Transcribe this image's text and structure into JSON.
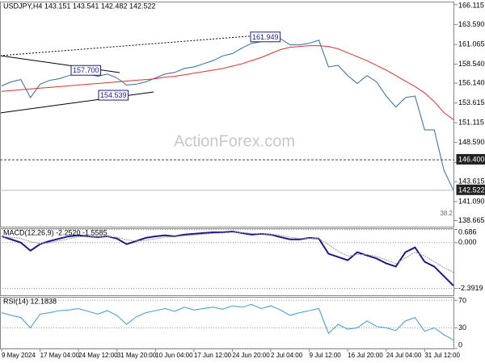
{
  "chart_data": [
    {
      "type": "line",
      "title": "USDJPY,H4 143.151 143.541 142.482 142.522",
      "watermark": "ActionForex.com",
      "categories": [
        "9 May 2024",
        null,
        null,
        null,
        "17 May 04:00",
        null,
        null,
        null,
        "24 May 12:00",
        null,
        null,
        null,
        "31 May 20:00",
        null,
        null,
        null,
        "10 Jun 04:00",
        null,
        null,
        null,
        "17 Jun 12:00",
        null,
        null,
        null,
        "24 Jun 20:00",
        null,
        null,
        null,
        "2 Jul 04:00",
        null,
        null,
        null,
        "9 Jul 12:00",
        null,
        null,
        null,
        "16 Jul 20:00",
        null,
        null,
        null,
        "24 Jul 04:00",
        null,
        null,
        null,
        "31 Jul 12:00",
        null,
        null,
        null
      ],
      "series": [
        {
          "color": "#2b6ca3",
          "values": [
            155.8,
            156.3,
            156.6,
            154.3,
            156.0,
            156.5,
            156.7,
            157.1,
            157.5,
            157.3,
            157.0,
            157.3,
            156.8,
            155.9,
            156.0,
            156.3,
            156.8,
            157.3,
            157.5,
            158.0,
            158.2,
            158.6,
            159.0,
            159.6,
            159.9,
            160.6,
            161.2,
            161.4,
            161.6,
            161.8,
            161.0,
            161.0,
            161.2,
            161.6,
            158.2,
            158.4,
            157.1,
            156.1,
            157.1,
            156.3,
            154.5,
            153.1,
            154.3,
            154.5,
            150.2,
            150.2,
            145.1,
            142.522
          ]
        },
        {
          "color": "#e0302a",
          "values": [
            155.1,
            155.2,
            155.3,
            155.4,
            155.5,
            155.6,
            155.7,
            155.8,
            155.9,
            156.0,
            156.1,
            156.2,
            156.3,
            156.4,
            156.5,
            156.6,
            156.7,
            156.9,
            157.0,
            157.2,
            157.4,
            157.6,
            157.8,
            158.0,
            158.3,
            158.6,
            159.0,
            159.4,
            159.9,
            160.4,
            160.7,
            160.8,
            160.9,
            160.9,
            160.8,
            160.5,
            160.0,
            159.5,
            159.0,
            158.4,
            157.8,
            157.1,
            156.4,
            155.7,
            154.9,
            153.8,
            152.4,
            151.5
          ]
        }
      ],
      "ylim": [
        137.9,
        166.5
      ],
      "yticks": [
        166.115,
        {
          "value": 163.59,
          "label": "163.590"
        },
        161.065,
        {
          "value": 158.54,
          "label": "158.540"
        },
        {
          "value": 156.14,
          "label": "156.140"
        },
        153.615,
        151.115,
        {
          "value": 148.59,
          "label": "148.590"
        },
        146.065,
        143.615,
        {
          "value": 141.09,
          "label": "141.090"
        },
        138.665
      ],
      "grid": false,
      "annotations": [
        {
          "value": 157.7,
          "label": "157.700"
        },
        {
          "value": 154.539,
          "label": "154.539"
        },
        {
          "value": 161.949,
          "label": "161.949"
        }
      ],
      "hlines": [
        {
          "value": 146.4,
          "label": "146.400"
        },
        {
          "value": 142.522,
          "label": "142.522"
        }
      ],
      "fib_label": "38.2"
    },
    {
      "type": "line",
      "title": "MACD(12,26,9) -2.2520 -1.5585",
      "series": [
        {
          "color": "#1a1a8c",
          "values": [
            0.33,
            0.17,
            0,
            -0.42,
            -0.08,
            0.08,
            0.21,
            0.33,
            0.38,
            0.33,
            0.29,
            0.33,
            0.21,
            -0.08,
            0.08,
            0.25,
            0.33,
            0.38,
            0.33,
            0.42,
            0.46,
            0.5,
            0.54,
            0.54,
            0.58,
            0.5,
            0.42,
            0.46,
            0.42,
            0.29,
            0.17,
            0.17,
            0.25,
            0.21,
            -0.58,
            -0.75,
            -0.92,
            -0.5,
            -0.67,
            -0.83,
            -1.08,
            -1.25,
            -0.5,
            -0.25,
            -1.0,
            -1.25,
            -1.75,
            -2.252
          ]
        },
        {
          "color": "#999999",
          "values": [
            0.3,
            0.28,
            0.22,
            0.05,
            -0.05,
            0.0,
            0.1,
            0.2,
            0.3,
            0.33,
            0.32,
            0.31,
            0.28,
            0.15,
            0.08,
            0.12,
            0.2,
            0.28,
            0.32,
            0.36,
            0.4,
            0.44,
            0.48,
            0.51,
            0.54,
            0.53,
            0.48,
            0.46,
            0.44,
            0.38,
            0.28,
            0.22,
            0.22,
            0.22,
            -0.1,
            -0.45,
            -0.7,
            -0.62,
            -0.62,
            -0.72,
            -0.9,
            -1.1,
            -0.8,
            -0.5,
            -0.7,
            -1.0,
            -1.3,
            -1.5585
          ]
        }
      ],
      "ylim": [
        -2.75,
        0.75
      ],
      "yticks": [
        0.686,
        {
          "value": 0,
          "label": "0.000"
        },
        -2.3919
      ],
      "grid": true
    },
    {
      "type": "line",
      "title": "RSI(14) 12.1838",
      "series": [
        {
          "color": "#3a9ad9",
          "values": [
            52,
            48,
            45,
            30,
            50,
            52,
            55,
            56,
            58,
            54,
            50,
            55,
            48,
            35,
            46,
            52,
            55,
            58,
            54,
            60,
            56,
            58,
            60,
            57,
            62,
            60,
            64,
            58,
            62,
            56,
            48,
            52,
            55,
            58,
            22,
            35,
            28,
            30,
            40,
            32,
            30,
            26,
            40,
            45,
            25,
            30,
            20,
            12.1838
          ]
        }
      ],
      "ylim": [
        0,
        75
      ],
      "yticks": [
        70,
        30,
        0
      ],
      "grid": true
    }
  ]
}
